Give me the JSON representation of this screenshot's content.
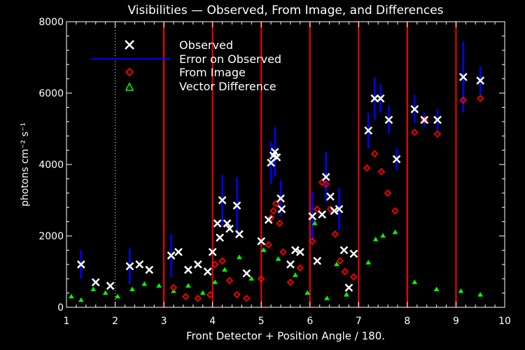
{
  "chart_data": {
    "type": "scatter",
    "title": "Visibilities — Observed, From Image, and Differences",
    "xlabel": "Front Detector + Position Angle / 180.",
    "ylabel": "photons cm⁻² s⁻¹",
    "xlim": [
      1,
      10
    ],
    "ylim": [
      0,
      8000
    ],
    "xticks": [
      1,
      2,
      3,
      4,
      5,
      6,
      7,
      8,
      9,
      10
    ],
    "yticks": [
      0,
      2000,
      4000,
      6000,
      8000
    ],
    "xtick_labels": [
      "1",
      "2",
      "3",
      "4",
      "5",
      "6",
      "7",
      "8",
      "9",
      "10"
    ],
    "ytick_labels": [
      "0",
      "2000",
      "4000",
      "6000",
      "8000"
    ],
    "grid": false,
    "legend_position": "top-left",
    "colors": {
      "background": "#000000",
      "observed": "#ffffff",
      "error": "#0000ff",
      "from_image": "#ff0000",
      "difference": "#00ff00",
      "divider": "#ff0000",
      "dotted": "#ffffff"
    },
    "vertical_lines": [
      3,
      4,
      5,
      6,
      7,
      8,
      9
    ],
    "dotted_line": 2,
    "series": [
      {
        "name": "Observed",
        "marker": "x",
        "points": [
          [
            1.3,
            1200
          ],
          [
            1.6,
            700
          ],
          [
            1.9,
            600
          ],
          [
            2.3,
            1150
          ],
          [
            2.5,
            1200
          ],
          [
            2.7,
            1050
          ],
          [
            3.15,
            1450
          ],
          [
            3.3,
            1550
          ],
          [
            3.5,
            1050
          ],
          [
            3.7,
            1200
          ],
          [
            3.9,
            1000
          ],
          [
            4.0,
            1550
          ],
          [
            4.1,
            2350
          ],
          [
            4.15,
            1950
          ],
          [
            4.2,
            3000
          ],
          [
            4.3,
            2350
          ],
          [
            4.35,
            2200
          ],
          [
            4.5,
            2850
          ],
          [
            4.55,
            2050
          ],
          [
            4.7,
            950
          ],
          [
            5.0,
            1850
          ],
          [
            5.15,
            2450
          ],
          [
            5.2,
            4050
          ],
          [
            5.25,
            4250
          ],
          [
            5.28,
            4350
          ],
          [
            5.32,
            4200
          ],
          [
            5.4,
            3050
          ],
          [
            5.42,
            2750
          ],
          [
            5.6,
            1200
          ],
          [
            5.7,
            1600
          ],
          [
            5.8,
            1550
          ],
          [
            6.05,
            2550
          ],
          [
            6.15,
            1300
          ],
          [
            6.25,
            2600
          ],
          [
            6.33,
            3650
          ],
          [
            6.42,
            3100
          ],
          [
            6.5,
            2700
          ],
          [
            6.6,
            2750
          ],
          [
            6.7,
            1600
          ],
          [
            6.8,
            550
          ],
          [
            6.9,
            1500
          ],
          [
            7.2,
            4950
          ],
          [
            7.33,
            5850
          ],
          [
            7.45,
            5850
          ],
          [
            7.62,
            5250
          ],
          [
            7.78,
            4150
          ],
          [
            8.15,
            5550
          ],
          [
            8.35,
            5250
          ],
          [
            8.62,
            5250
          ],
          [
            9.15,
            6450
          ],
          [
            9.5,
            6350
          ]
        ]
      },
      {
        "name": "Error on Observed",
        "marker": "errorbar",
        "bars": [
          [
            1.3,
            1200,
            400
          ],
          [
            2.3,
            1150,
            500
          ],
          [
            3.15,
            1450,
            600
          ],
          [
            4.2,
            3000,
            700
          ],
          [
            4.5,
            2850,
            800
          ],
          [
            5.2,
            4050,
            600
          ],
          [
            5.28,
            4350,
            700
          ],
          [
            5.4,
            3050,
            500
          ],
          [
            6.05,
            2550,
            700
          ],
          [
            6.33,
            3650,
            700
          ],
          [
            6.6,
            2750,
            600
          ],
          [
            7.2,
            4950,
            500
          ],
          [
            7.33,
            5850,
            600
          ],
          [
            7.45,
            5850,
            400
          ],
          [
            7.62,
            5250,
            400
          ],
          [
            7.78,
            4150,
            300
          ],
          [
            8.15,
            5550,
            400
          ],
          [
            8.35,
            5250,
            200
          ],
          [
            8.62,
            5250,
            300
          ],
          [
            9.15,
            6450,
            1000
          ],
          [
            9.5,
            6350,
            400
          ]
        ]
      },
      {
        "name": "From Image",
        "marker": "diamond",
        "points": [
          [
            3.2,
            550
          ],
          [
            3.45,
            300
          ],
          [
            3.7,
            250
          ],
          [
            3.95,
            350
          ],
          [
            4.05,
            1200
          ],
          [
            4.2,
            1300
          ],
          [
            4.35,
            750
          ],
          [
            4.5,
            350
          ],
          [
            4.7,
            250
          ],
          [
            5.0,
            800
          ],
          [
            5.15,
            1750
          ],
          [
            5.2,
            2500
          ],
          [
            5.25,
            2700
          ],
          [
            5.3,
            2900
          ],
          [
            5.38,
            2350
          ],
          [
            5.45,
            1550
          ],
          [
            5.6,
            700
          ],
          [
            5.8,
            1100
          ],
          [
            6.05,
            1850
          ],
          [
            6.15,
            2750
          ],
          [
            6.25,
            3500
          ],
          [
            6.33,
            3450
          ],
          [
            6.42,
            2750
          ],
          [
            6.52,
            2050
          ],
          [
            6.62,
            1300
          ],
          [
            6.72,
            1000
          ],
          [
            6.9,
            850
          ],
          [
            7.17,
            3900
          ],
          [
            7.33,
            4300
          ],
          [
            7.47,
            3800
          ],
          [
            7.6,
            3200
          ],
          [
            7.75,
            2700
          ],
          [
            8.15,
            4900
          ],
          [
            8.35,
            5250
          ],
          [
            8.62,
            4850
          ],
          [
            9.15,
            5800
          ],
          [
            9.5,
            5850
          ]
        ]
      },
      {
        "name": "Vector Difference",
        "marker": "triangle",
        "points": [
          [
            1.1,
            300
          ],
          [
            1.3,
            200
          ],
          [
            1.55,
            500
          ],
          [
            1.8,
            400
          ],
          [
            2.05,
            300
          ],
          [
            2.35,
            500
          ],
          [
            2.6,
            650
          ],
          [
            2.9,
            600
          ],
          [
            3.2,
            450
          ],
          [
            3.5,
            600
          ],
          [
            3.8,
            400
          ],
          [
            4.05,
            700
          ],
          [
            4.25,
            1050
          ],
          [
            4.55,
            1400
          ],
          [
            4.8,
            800
          ],
          [
            5.05,
            1600
          ],
          [
            5.35,
            1350
          ],
          [
            5.7,
            900
          ],
          [
            5.95,
            400
          ],
          [
            6.1,
            2350
          ],
          [
            6.35,
            250
          ],
          [
            6.55,
            1200
          ],
          [
            6.75,
            350
          ],
          [
            7.2,
            1250
          ],
          [
            7.35,
            1900
          ],
          [
            7.5,
            2000
          ],
          [
            7.75,
            2100
          ],
          [
            8.15,
            700
          ],
          [
            8.6,
            500
          ],
          [
            9.1,
            450
          ],
          [
            9.5,
            350
          ]
        ]
      }
    ]
  }
}
